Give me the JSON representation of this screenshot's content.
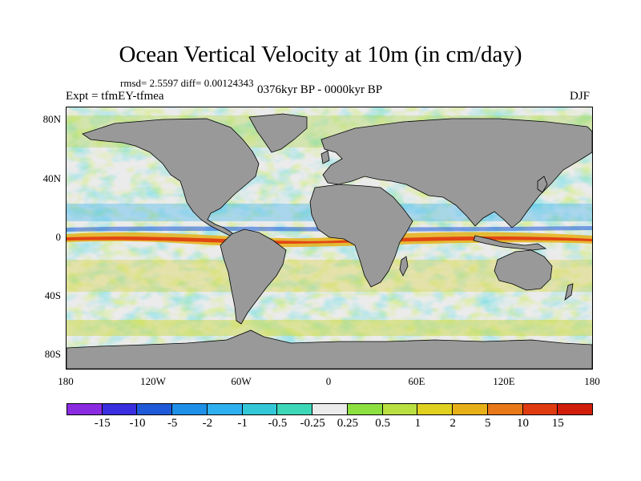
{
  "title": "Ocean Vertical Velocity at 10m (in cm/day)",
  "stats": "rmsd= 2.5597 diff= 0.00124343",
  "experiment": "Expt = tfmEY-tfmea",
  "period": "0376kyr BP - 0000kyr BP",
  "season": "DJF",
  "map": {
    "lat_labels": [
      "80N",
      "40N",
      "0",
      "40S",
      "80S"
    ],
    "lon_labels": [
      "180",
      "120W",
      "60W",
      "0",
      "60E",
      "120E",
      "180"
    ],
    "land_color": "#999999",
    "ocean_background": "#ebebeb"
  },
  "colorbar": {
    "labels": [
      "-15",
      "-10",
      "-5",
      "-2",
      "-1",
      "-0.5",
      "-0.25",
      "0.25",
      "0.5",
      "1",
      "2",
      "5",
      "10",
      "15"
    ],
    "colors": [
      "#8a2be2",
      "#3a2ee0",
      "#1e5ad8",
      "#1e90e8",
      "#2fb0f0",
      "#32c8d8",
      "#3cd8b8",
      "#ebebeb",
      "#8ce040",
      "#b8e040",
      "#e0d020",
      "#e8b018",
      "#e87818",
      "#e03a10",
      "#d01e0a"
    ]
  }
}
